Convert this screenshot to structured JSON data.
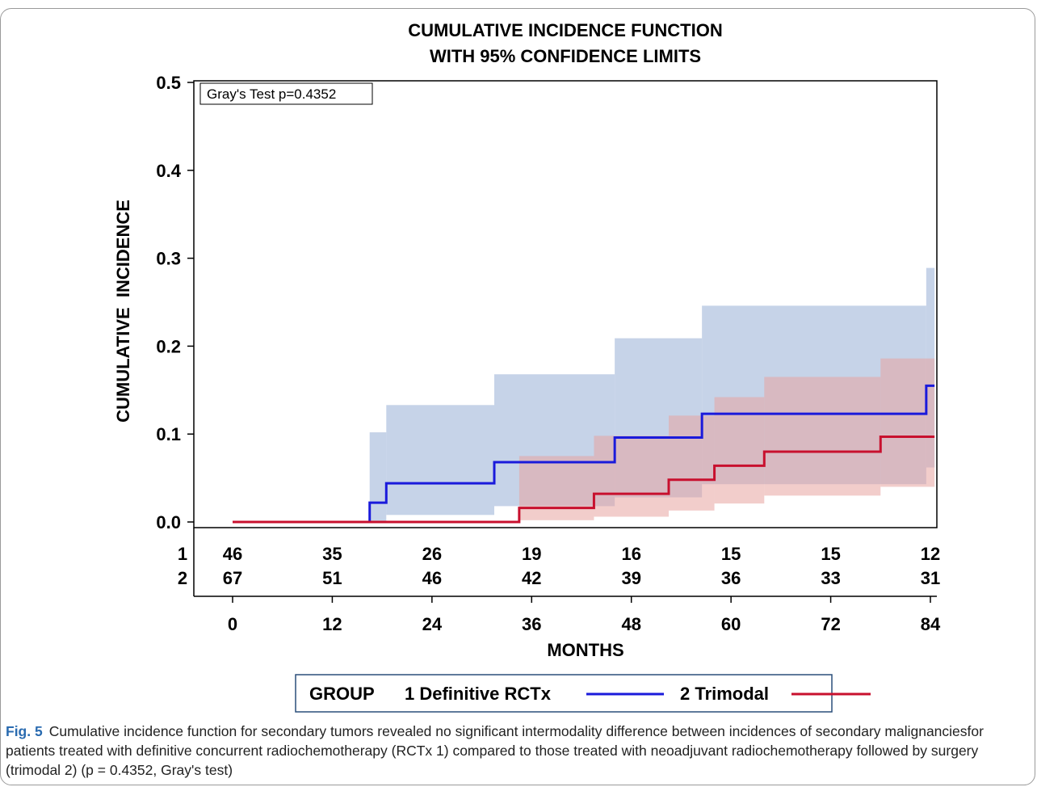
{
  "chart_data": {
    "type": "line",
    "step": true,
    "title_lines": [
      "CUMULATIVE INCIDENCE FUNCTION",
      "WITH 95% CONFIDENCE LIMITS"
    ],
    "xlabel": "MONTHS",
    "ylabel": "CUMULATIVE  INCIDENCE",
    "xlim": [
      0,
      84
    ],
    "ylim": [
      0,
      0.5
    ],
    "x_ticks": [
      "0",
      "12",
      "24",
      "36",
      "48",
      "60",
      "72",
      "84"
    ],
    "y_ticks": [
      "0.0",
      "0.1",
      "0.2",
      "0.3",
      "0.4",
      "0.5"
    ],
    "annotation": "Gray's Test p=0.4352",
    "legend_title": "GROUP",
    "legend_position": "bottom",
    "series": [
      {
        "name": "1 Definitive RCTx",
        "color": "#1a1adb",
        "band_color": "#a7bbdc",
        "x": [
          0,
          16.5,
          18.5,
          31.5,
          46,
          56.5,
          83.5,
          84.5
        ],
        "y": [
          0,
          0.022,
          0.044,
          0.068,
          0.096,
          0.123,
          0.155,
          0.155
        ],
        "band": [
          {
            "x": 16.5,
            "lower": 0.0,
            "upper": 0.102
          },
          {
            "x": 18.5,
            "lower": 0.008,
            "upper": 0.133
          },
          {
            "x": 31.5,
            "lower": 0.018,
            "upper": 0.168
          },
          {
            "x": 46,
            "lower": 0.028,
            "upper": 0.209
          },
          {
            "x": 56.5,
            "lower": 0.043,
            "upper": 0.246
          },
          {
            "x": 83.5,
            "lower": 0.062,
            "upper": 0.289
          },
          {
            "x": 84.5,
            "lower": 0.062,
            "upper": 0.289
          }
        ]
      },
      {
        "name": "2 Trimodal",
        "color": "#c8102e",
        "band_color": "#e8a4a0",
        "x": [
          0,
          34.5,
          43.5,
          52.5,
          58,
          64,
          78,
          84.5
        ],
        "y": [
          0,
          0.016,
          0.032,
          0.048,
          0.064,
          0.08,
          0.097,
          0.097
        ],
        "band": [
          {
            "x": 34.5,
            "lower": 0.002,
            "upper": 0.075
          },
          {
            "x": 43.5,
            "lower": 0.006,
            "upper": 0.098
          },
          {
            "x": 52.5,
            "lower": 0.013,
            "upper": 0.121
          },
          {
            "x": 58,
            "lower": 0.021,
            "upper": 0.142
          },
          {
            "x": 64,
            "lower": 0.03,
            "upper": 0.165
          },
          {
            "x": 78,
            "lower": 0.04,
            "upper": 0.186
          },
          {
            "x": 84.5,
            "lower": 0.04,
            "upper": 0.186
          }
        ]
      }
    ],
    "at_risk": {
      "x": [
        0,
        12,
        24,
        36,
        48,
        60,
        72,
        84
      ],
      "rows": [
        {
          "label": "1",
          "values": [
            "46",
            "35",
            "26",
            "19",
            "16",
            "15",
            "15",
            "12"
          ]
        },
        {
          "label": "2",
          "values": [
            "67",
            "51",
            "46",
            "42",
            "39",
            "36",
            "33",
            "31"
          ]
        }
      ]
    }
  },
  "caption": {
    "label": "Fig. 5",
    "text": "Cumulative incidence function for secondary tumors revealed no significant intermodality difference between incidences of secondary malignanciesfor patients treated with definitive concurrent radiochemotherapy (RCTx 1) compared to those treated with neoadjuvant radiochemotherapy followed by surgery (trimodal 2) (p = 0.4352, Gray's test)"
  }
}
